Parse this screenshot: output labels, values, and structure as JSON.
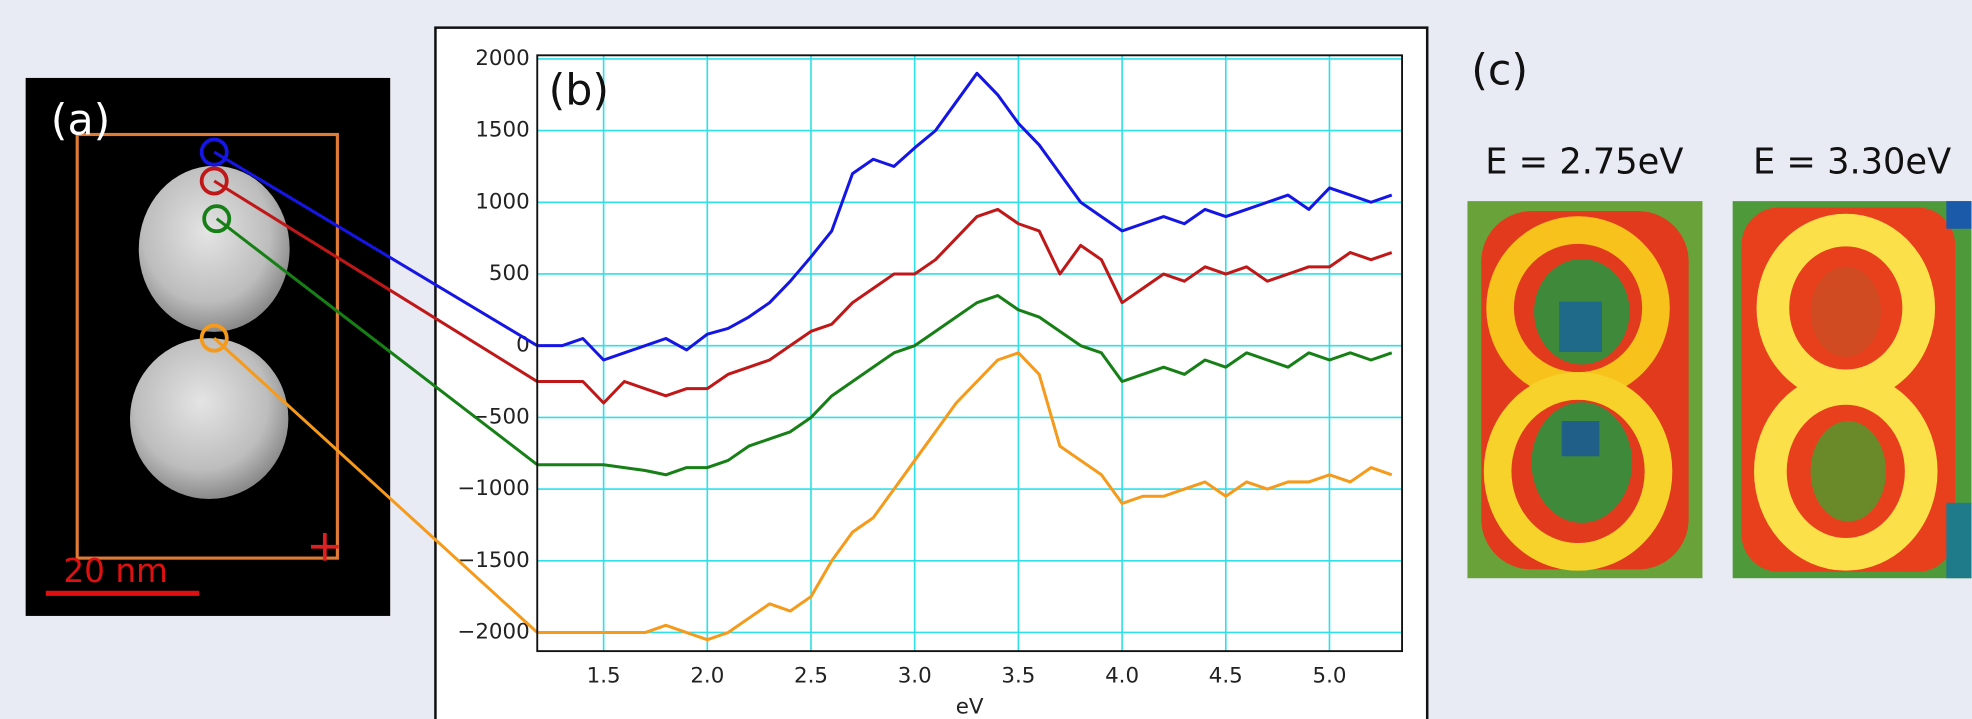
{
  "panel_a": {
    "label": "(a)",
    "scale_bar": "20 nm"
  },
  "chart_data": {
    "type": "line",
    "label": "(b)",
    "xlabel": "eV",
    "x": [
      1.18,
      1.3,
      1.4,
      1.5,
      1.6,
      1.7,
      1.8,
      1.9,
      2.0,
      2.1,
      2.2,
      2.3,
      2.4,
      2.5,
      2.6,
      2.7,
      2.8,
      2.9,
      3.0,
      3.1,
      3.2,
      3.3,
      3.4,
      3.5,
      3.6,
      3.7,
      3.8,
      3.9,
      4.0,
      4.1,
      4.2,
      4.3,
      4.4,
      4.5,
      4.6,
      4.7,
      4.8,
      4.9,
      5.0,
      5.1,
      5.2,
      5.3
    ],
    "xlim": [
      1.18,
      5.35
    ],
    "xticks": [
      1.5,
      {
        "value": 2,
        "label": "2.0"
      },
      2.5,
      {
        "value": 3,
        "label": "3.0"
      },
      3.5,
      {
        "value": 4,
        "label": "4.0"
      },
      4.5,
      {
        "value": 5,
        "label": "5.0"
      }
    ],
    "ylim": [
      -2130,
      2025
    ],
    "yticks": [
      2000,
      1500,
      1000,
      500,
      0,
      {
        "value": -500,
        "label": "−500"
      },
      {
        "value": -1000,
        "label": "−1000"
      },
      {
        "value": -1500,
        "label": "−1500"
      },
      {
        "value": -2000,
        "label": "−2000"
      }
    ],
    "grid": true,
    "grid_color": "#2ee0e8",
    "series": [
      {
        "color": "#1515e6",
        "values": [
          0,
          0,
          50,
          -100,
          -50,
          0,
          50,
          -30,
          80,
          120,
          200,
          300,
          450,
          620,
          800,
          1200,
          1300,
          1250,
          1380,
          1500,
          1700,
          1900,
          1750,
          1550,
          1400,
          1200,
          1000,
          900,
          800,
          850,
          900,
          850,
          950,
          900,
          950,
          1000,
          1050,
          950,
          1100,
          1050,
          1000,
          1050
        ]
      },
      {
        "color": "#c01818",
        "values": [
          -250,
          -250,
          -250,
          -400,
          -250,
          -300,
          -350,
          -300,
          -300,
          -200,
          -150,
          -100,
          0,
          100,
          150,
          300,
          400,
          500,
          500,
          600,
          750,
          900,
          950,
          850,
          800,
          500,
          700,
          600,
          300,
          400,
          500,
          450,
          550,
          500,
          550,
          450,
          500,
          550,
          550,
          650,
          600,
          650
        ]
      },
      {
        "color": "#168016",
        "values": [
          -830,
          -830,
          -830,
          -830,
          -850,
          -870,
          -900,
          -850,
          -850,
          -800,
          -700,
          -650,
          -600,
          -500,
          -350,
          -250,
          -150,
          -50,
          0,
          100,
          200,
          300,
          350,
          250,
          200,
          100,
          0,
          -50,
          -250,
          -200,
          -150,
          -200,
          -100,
          -150,
          -50,
          -100,
          -150,
          -50,
          -100,
          -50,
          -100,
          -50
        ]
      },
      {
        "color": "#f59a1a",
        "values": [
          -2000,
          -2000,
          -2000,
          -2000,
          -2000,
          -2000,
          -1950,
          -2000,
          -2050,
          -2000,
          -1900,
          -1800,
          -1850,
          -1750,
          -1500,
          -1300,
          -1200,
          -1000,
          -800,
          -600,
          -400,
          -250,
          -100,
          -50,
          -200,
          -700,
          -800,
          -900,
          -1100,
          -1050,
          -1050,
          -1000,
          -950,
          -1050,
          -950,
          -1000,
          -950,
          -950,
          -900,
          -950,
          -850,
          -900
        ]
      }
    ]
  },
  "panel_c": {
    "label": "(c)",
    "maps": [
      {
        "title": "E = 2.75eV"
      },
      {
        "title": "E = 3.30eV"
      }
    ]
  }
}
